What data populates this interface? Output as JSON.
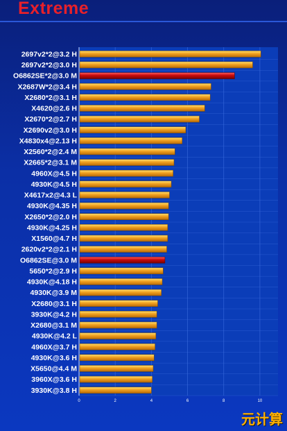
{
  "header": {
    "title": "Extreme"
  },
  "watermark": "元计算",
  "colors": {
    "bar_normal": "#f0a020",
    "bar_highlight": "#c80a0a",
    "plot_bg": "#0b3db8",
    "grid": "#3c6ee0",
    "label": "#ffffff"
  },
  "chart_data": {
    "type": "bar",
    "orientation": "horizontal",
    "title": "Extreme",
    "xlabel": "",
    "ylabel": "",
    "xlim": [
      0,
      11
    ],
    "xticks": [
      0,
      2,
      4,
      6,
      8,
      10
    ],
    "grid": true,
    "categories": [
      "2697v2*2@3.2 H",
      "2697v2*2@3.0 H",
      "O6862SE*2@3.0 M",
      "X2687W*2@3.4 H",
      "X2680*2@3.1 H",
      "X4620@2.6 H",
      "X2670*2@2.7 H",
      "X2690v2@3.0 H",
      "X4830x4@2.13 H",
      "X2560*2@2.4 M",
      "X2665*2@3.1 M",
      "4960X@4.5 H",
      "4930K@4.5 H",
      "X4617x2@4.3 L",
      "4930K@4.35 H",
      "X2650*2@2.0 H",
      "4930K@4.25 H",
      "X1560@4.7 H",
      "2620v2*2@2.1 H",
      "O6862SE@3.0 M",
      "5650*2@2.9 H",
      "4930K@4.18 H",
      "4930K@3.9 M",
      "X2680@3.1 H",
      "3930K@4.2 H",
      "X2680@3.1 M",
      "4930K@4.2 L",
      "4960X@3.7 H",
      "4930K@3.6 H",
      "X5650@4.4 M",
      "3960X@3.6 H",
      "3930K@3.8 H"
    ],
    "values": [
      10.05,
      9.6,
      8.6,
      7.3,
      7.25,
      6.95,
      6.65,
      5.9,
      5.7,
      5.3,
      5.25,
      5.2,
      5.1,
      5.0,
      4.95,
      4.95,
      4.9,
      4.9,
      4.85,
      4.75,
      4.65,
      4.6,
      4.55,
      4.35,
      4.3,
      4.3,
      4.25,
      4.2,
      4.15,
      4.1,
      4.05,
      4.0
    ],
    "highlight": [
      2,
      19
    ]
  }
}
